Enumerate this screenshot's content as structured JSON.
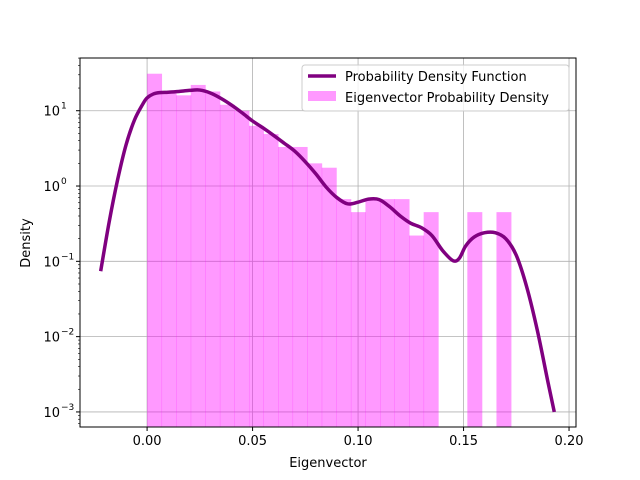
{
  "chart_data": {
    "type": "bar",
    "title": "",
    "xlabel": "Eigenvector",
    "ylabel": "Density",
    "xlim": [
      -0.0318,
      0.2033
    ],
    "ylim_log10": [
      -3.2,
      1.7
    ],
    "yscale": "log",
    "grid": true,
    "legend_position": "top-right",
    "x_ticks": [
      0.0,
      0.05,
      0.1,
      0.15,
      0.2
    ],
    "x_tick_labels": [
      "0.00",
      "0.05",
      "0.10",
      "0.15",
      "0.20"
    ],
    "y_ticks": [
      -3,
      -2,
      -1,
      0,
      1
    ],
    "y_tick_labels": [
      "10",
      "10",
      "10",
      "10",
      "10"
    ],
    "y_tick_exponents": [
      "−3",
      "−2",
      "−1",
      "0",
      "1"
    ],
    "histogram": {
      "name": "Eigenvector Probability Density",
      "color": "#ff00ff",
      "alpha": 0.4,
      "bins": [
        {
          "x0": 0.0,
          "x1": 0.0069,
          "density": 31
        },
        {
          "x0": 0.0069,
          "x1": 0.0138,
          "density": 17
        },
        {
          "x0": 0.0138,
          "x1": 0.0207,
          "density": 16
        },
        {
          "x0": 0.0207,
          "x1": 0.0276,
          "density": 22
        },
        {
          "x0": 0.0276,
          "x1": 0.0345,
          "density": 18
        },
        {
          "x0": 0.0345,
          "x1": 0.0414,
          "density": 12
        },
        {
          "x0": 0.0414,
          "x1": 0.0483,
          "density": 10
        },
        {
          "x0": 0.0483,
          "x1": 0.0552,
          "density": 6.3
        },
        {
          "x0": 0.0552,
          "x1": 0.0621,
          "density": 4.9
        },
        {
          "x0": 0.0621,
          "x1": 0.069,
          "density": 3.3
        },
        {
          "x0": 0.069,
          "x1": 0.0759,
          "density": 3.3
        },
        {
          "x0": 0.0759,
          "x1": 0.0828,
          "density": 2.0
        },
        {
          "x0": 0.0828,
          "x1": 0.0897,
          "density": 1.75
        },
        {
          "x0": 0.0897,
          "x1": 0.0966,
          "density": 0.67
        },
        {
          "x0": 0.0966,
          "x1": 0.1035,
          "density": 0.45
        },
        {
          "x0": 0.1035,
          "x1": 0.1104,
          "density": 0.67
        },
        {
          "x0": 0.1104,
          "x1": 0.1173,
          "density": 0.67
        },
        {
          "x0": 0.1173,
          "x1": 0.1242,
          "density": 0.67
        },
        {
          "x0": 0.1242,
          "x1": 0.1311,
          "density": 0.22
        },
        {
          "x0": 0.1311,
          "x1": 0.138,
          "density": 0.45
        },
        {
          "x0": 0.138,
          "x1": 0.1449,
          "density": 0
        },
        {
          "x0": 0.1449,
          "x1": 0.1518,
          "density": 0
        },
        {
          "x0": 0.1518,
          "x1": 0.1587,
          "density": 0.45
        },
        {
          "x0": 0.1587,
          "x1": 0.1656,
          "density": 0
        },
        {
          "x0": 0.1656,
          "x1": 0.1725,
          "density": 0.45
        }
      ]
    },
    "pdf": {
      "name": "Probability Density Function",
      "color": "#800080",
      "x": [
        -0.022,
        -0.018,
        -0.014,
        -0.01,
        -0.006,
        -0.002,
        0.0,
        0.003,
        0.006,
        0.01,
        0.015,
        0.02,
        0.025,
        0.03,
        0.035,
        0.04,
        0.045,
        0.05,
        0.055,
        0.06,
        0.065,
        0.07,
        0.075,
        0.08,
        0.085,
        0.09,
        0.095,
        0.1,
        0.105,
        0.11,
        0.115,
        0.12,
        0.125,
        0.13,
        0.135,
        0.14,
        0.145,
        0.148,
        0.151,
        0.155,
        0.16,
        0.165,
        0.17,
        0.175,
        0.18,
        0.185,
        0.19,
        0.193
      ],
      "y": [
        0.074,
        0.33,
        1.2,
        3.5,
        7.5,
        12.3,
        14.8,
        16.7,
        17.4,
        17.6,
        18.0,
        18.6,
        18.8,
        17.2,
        14.6,
        11.9,
        9.4,
        7.3,
        5.9,
        4.7,
        3.7,
        2.9,
        2.1,
        1.45,
        0.96,
        0.7,
        0.58,
        0.61,
        0.67,
        0.66,
        0.53,
        0.4,
        0.32,
        0.28,
        0.22,
        0.14,
        0.102,
        0.11,
        0.16,
        0.21,
        0.24,
        0.24,
        0.2,
        0.12,
        0.045,
        0.012,
        0.0025,
        0.001
      ]
    }
  }
}
